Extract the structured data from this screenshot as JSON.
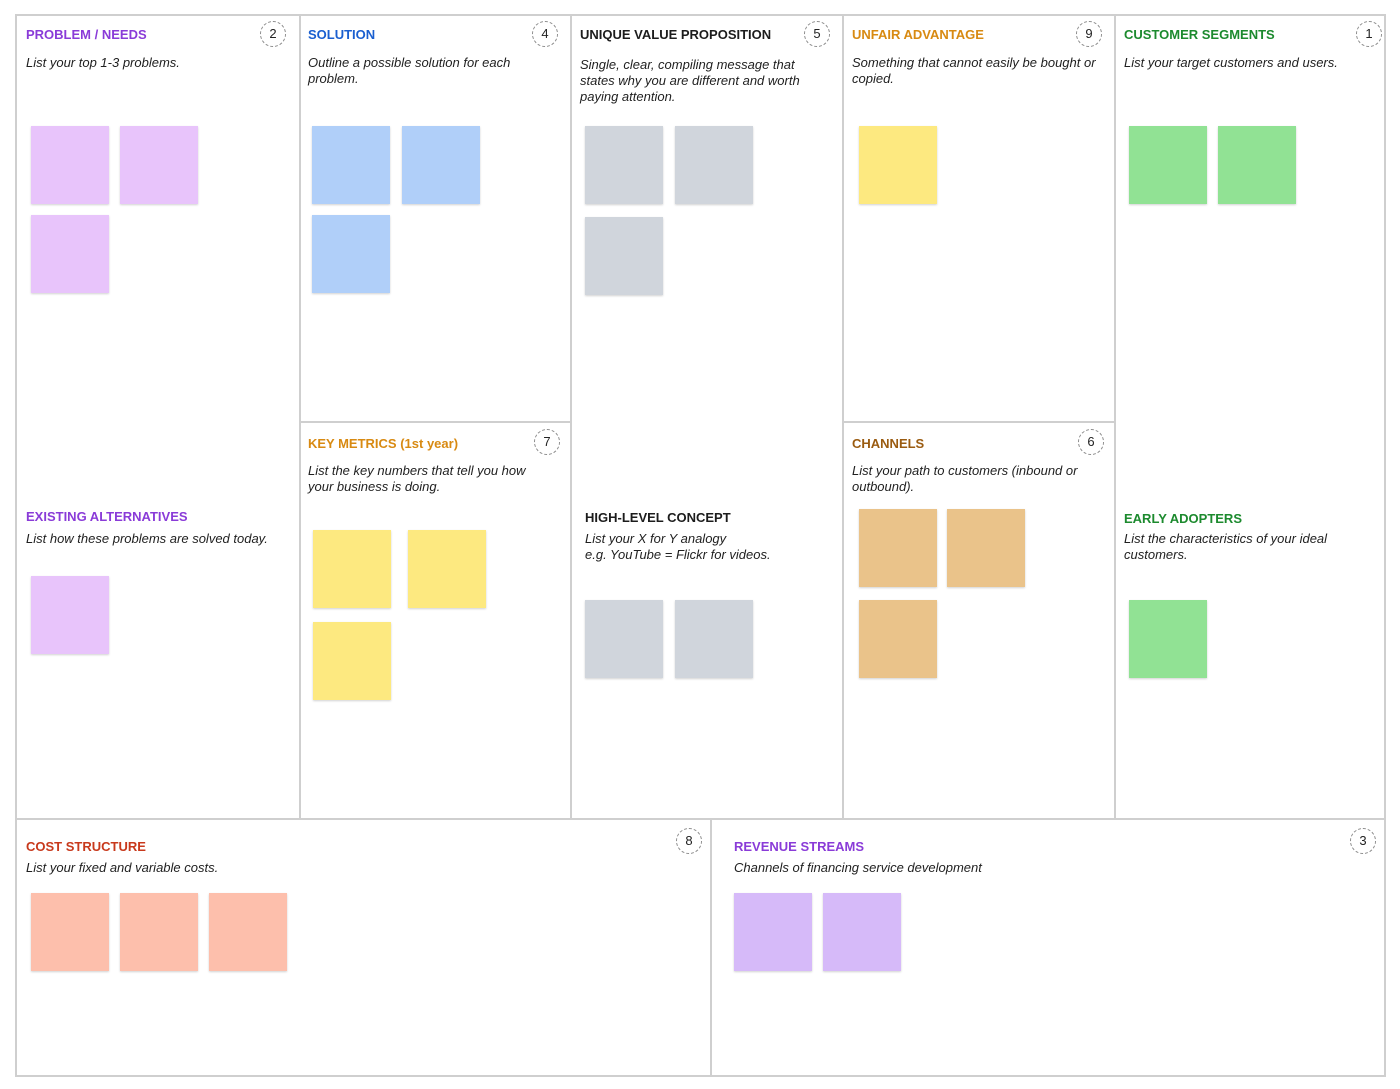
{
  "colors": {
    "border": "#cfcfcf",
    "note_pink": "#e8c4fb",
    "note_blue": "#b0cff9",
    "note_gray": "#d0d5dc",
    "note_yellow": "#fde980",
    "note_green": "#91e294",
    "note_tan": "#eac38a",
    "note_salmon": "#fdbfac",
    "note_violet": "#d6baf9"
  },
  "problem": {
    "title": "PROBLEM / NEEDS",
    "badge": "2",
    "desc": "List your top 1-3 problems."
  },
  "existing_alternatives": {
    "title": "EXISTING ALTERNATIVES",
    "desc": "List how these problems are solved today."
  },
  "solution": {
    "title": "SOLUTION",
    "badge": "4",
    "desc": "Outline a possible solution for each problem."
  },
  "key_metrics": {
    "title": "KEY METRICS (1st year)",
    "badge": "7",
    "desc": "List the key numbers that tell you how your business is doing."
  },
  "uvp": {
    "title": "UNIQUE VALUE PROPOSITION",
    "badge": "5",
    "desc": "Single, clear, compiling message that states why you are different and worth paying attention."
  },
  "high_level_concept": {
    "title": "HIGH-LEVEL CONCEPT",
    "desc_line1": "List your X for Y analogy",
    "desc_line2": "e.g. YouTube = Flickr for videos."
  },
  "unfair_advantage": {
    "title": "UNFAIR ADVANTAGE",
    "badge": "9",
    "desc": "Something that cannot easily be bought or copied."
  },
  "channels": {
    "title": "CHANNELS",
    "badge": "6",
    "desc": "List your path to customers (inbound or outbound)."
  },
  "customer_segments": {
    "title": "CUSTOMER SEGMENTS",
    "badge": "1",
    "desc": "List your target customers and users."
  },
  "early_adopters": {
    "title": "EARLY ADOPTERS",
    "desc": "List the characteristics of your ideal customers."
  },
  "cost_structure": {
    "title": "COST STRUCTURE",
    "badge": "8",
    "desc": "List your fixed and variable costs."
  },
  "revenue_streams": {
    "title": "REVENUE STREAMS",
    "badge": "3",
    "desc": "Channels of financing service development"
  }
}
